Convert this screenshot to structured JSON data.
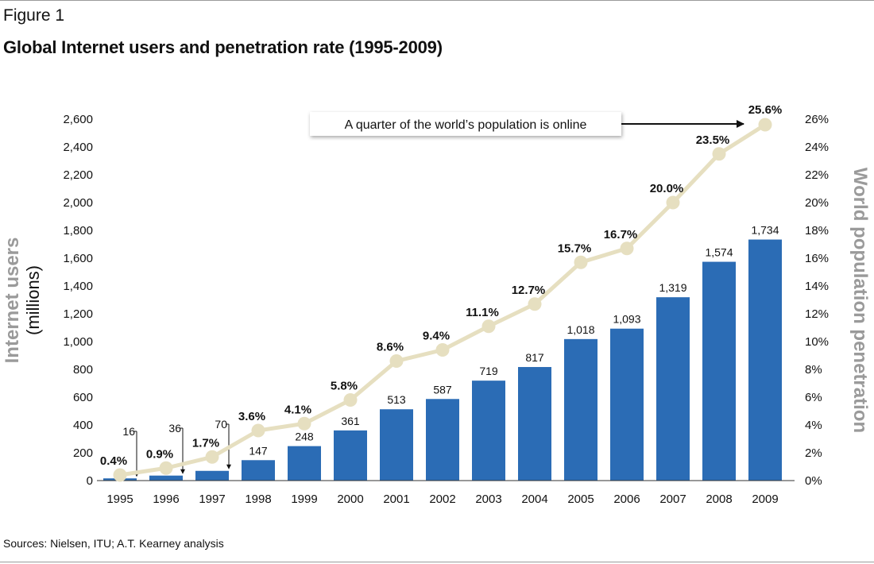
{
  "figure_label": "Figure 1",
  "figure_title": "Global Internet users and penetration rate (1995-2009)",
  "source": "Sources: Nielsen, ITU; A.T. Kearney analysis",
  "colors": {
    "bar": "#2b6cb5",
    "line": "#e6dfc0",
    "marker": "#e6dfc0",
    "axis_title": "#9a9a9a"
  },
  "chart_data": {
    "type": "bar",
    "categories": [
      "1995",
      "1996",
      "1997",
      "1998",
      "1999",
      "2000",
      "2001",
      "2002",
      "2003",
      "2004",
      "2005",
      "2006",
      "2007",
      "2008",
      "2009"
    ],
    "series": [
      {
        "type": "bar",
        "axis": "left",
        "values": [
          16,
          36,
          70,
          147,
          248,
          361,
          513,
          587,
          719,
          817,
          1018,
          1093,
          1319,
          1574,
          1734
        ],
        "labels": [
          "16",
          "36",
          "70",
          "147",
          "248",
          "361",
          "513",
          "587",
          "719",
          "817",
          "1,018",
          "1,093",
          "1,319",
          "1,574",
          "1,734"
        ]
      },
      {
        "type": "line",
        "axis": "right",
        "values": [
          0.4,
          0.9,
          1.7,
          3.6,
          4.1,
          5.8,
          8.6,
          9.4,
          11.1,
          12.7,
          15.7,
          16.7,
          20.0,
          23.5,
          25.6
        ],
        "labels": [
          "0.4%",
          "0.9%",
          "1.7%",
          "3.6%",
          "4.1%",
          "5.8%",
          "8.6%",
          "9.4%",
          "11.1%",
          "12.7%",
          "15.7%",
          "16.7%",
          "20.0%",
          "23.5%",
          "25.6%"
        ]
      }
    ],
    "y_left": {
      "label_line1": "Internet users",
      "label_line2": "(millions)",
      "ylim": [
        0,
        2600
      ],
      "ticks": [
        "0",
        "200",
        "400",
        "600",
        "800",
        "1,000",
        "1,200",
        "1,400",
        "1,600",
        "1,800",
        "2,000",
        "2,200",
        "2,400",
        "2,600"
      ]
    },
    "y_right": {
      "label": "World population penetration",
      "ylim": [
        0,
        26
      ],
      "ticks": [
        "0%",
        "2%",
        "4%",
        "6%",
        "8%",
        "10%",
        "12%",
        "14%",
        "16%",
        "18%",
        "20%",
        "22%",
        "24%",
        "26%"
      ]
    },
    "annotation": "A quarter of the world’s population is online",
    "grid": false
  }
}
